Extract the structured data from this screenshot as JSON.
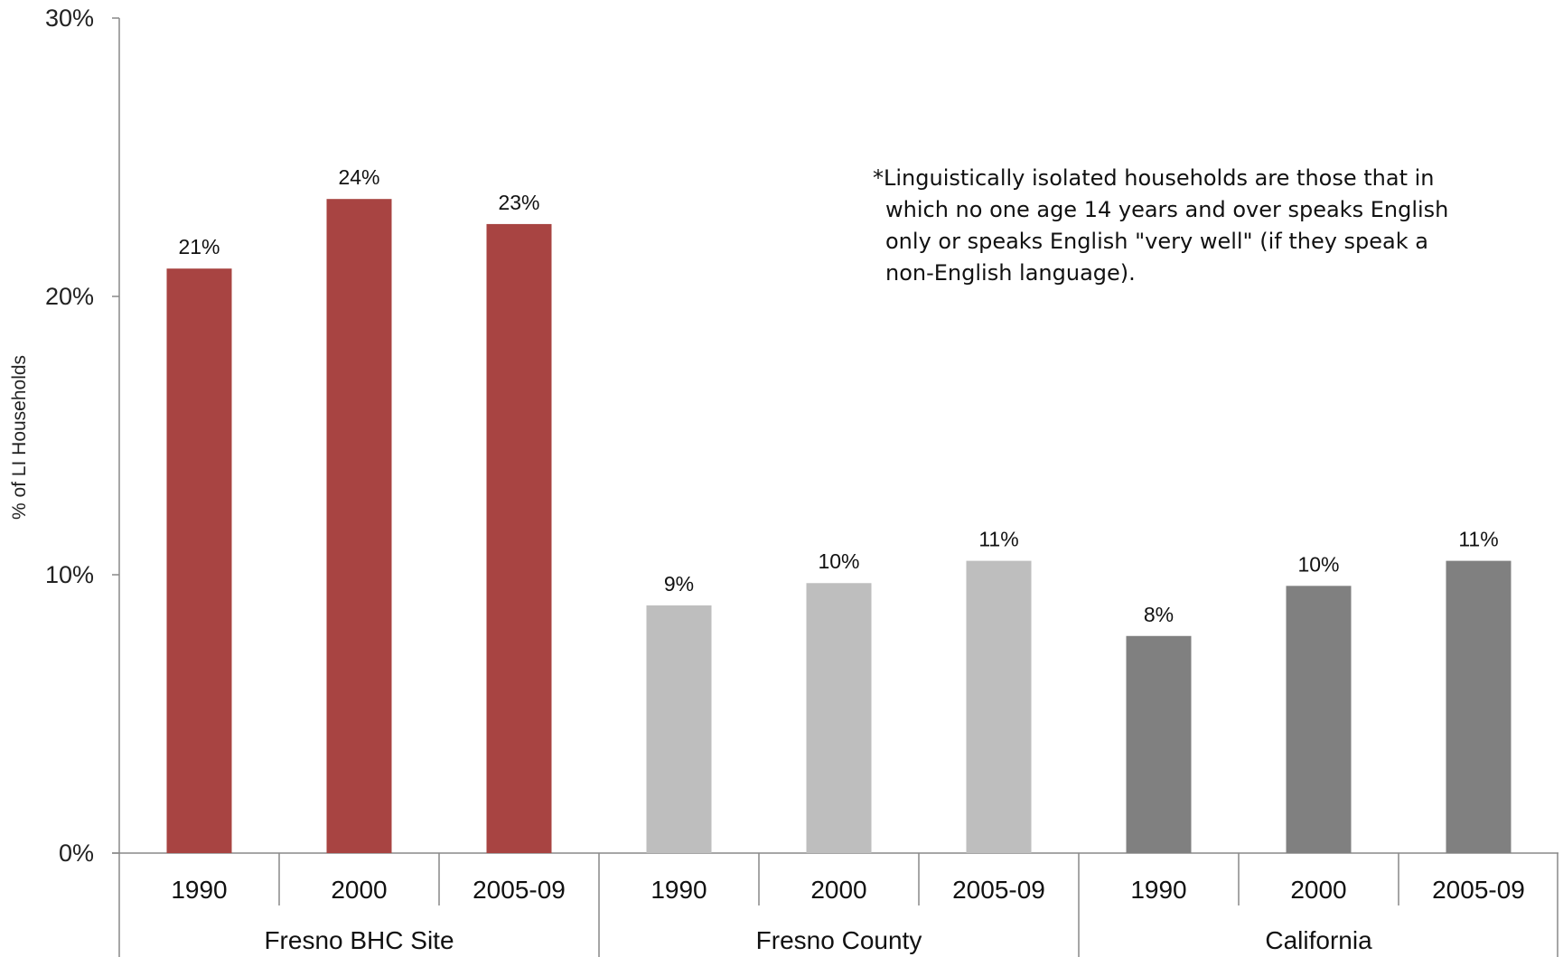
{
  "note": {
    "lines": [
      "*Linguistically isolated households are those that in",
      "which no one age 14 years and over speaks English",
      "only or speaks English \"very well\" (if they speak a",
      "non-English language)."
    ]
  },
  "chart_data": {
    "type": "bar",
    "title": "",
    "ylabel": "% of LI Households",
    "xlabel": "",
    "ylim": [
      0,
      30
    ],
    "yticks": [
      "0%",
      "10%",
      "20%",
      "30%"
    ],
    "grid": false,
    "legend": "none",
    "groups": [
      {
        "name": "Fresno BHC Site",
        "color": "#A84442",
        "categories": [
          "1990",
          "2000",
          "2005-09"
        ],
        "values": [
          21,
          23.5,
          22.6
        ],
        "labels": [
          "21%",
          "24%",
          "23%"
        ]
      },
      {
        "name": "Fresno County",
        "color": "#BEBEBE",
        "categories": [
          "1990",
          "2000",
          "2005-09"
        ],
        "values": [
          8.9,
          9.7,
          10.5
        ],
        "labels": [
          "9%",
          "10%",
          "11%"
        ]
      },
      {
        "name": "California",
        "color": "#808080",
        "categories": [
          "1990",
          "2000",
          "2005-09"
        ],
        "values": [
          7.8,
          9.6,
          10.5
        ],
        "labels": [
          "8%",
          "10%",
          "11%"
        ]
      }
    ]
  }
}
